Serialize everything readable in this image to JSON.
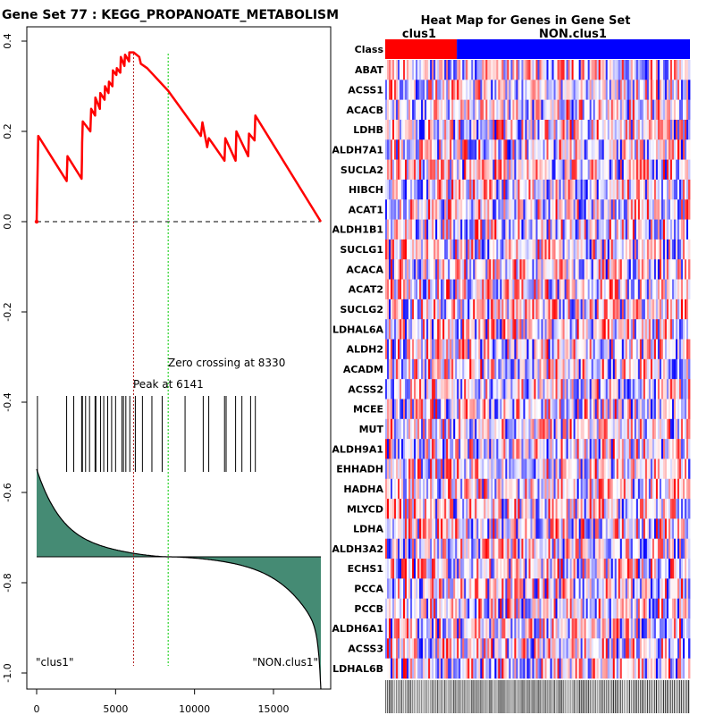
{
  "chart_data": [
    {
      "type": "line",
      "title": "Gene Set  77 : KEGG_PROPANOATE_METABOLISM",
      "xlabel": "",
      "ylabel": "",
      "xlim": [
        0,
        18000
      ],
      "ylim": [
        -1.0,
        0.4
      ],
      "x_ticks": [
        0,
        5000,
        10000,
        15000
      ],
      "x_tick_labels": [
        "0",
        "5000",
        "10000",
        "15000"
      ],
      "y_ticks": [
        0.4,
        0.2,
        0.0,
        -0.2,
        -0.4,
        -0.6,
        -0.8,
        -1.0
      ],
      "y_tick_labels": [
        "0.4",
        "0.2",
        "0.0",
        "-0.2",
        "-0.4",
        "-0.6",
        "-0.8",
        "-1.0"
      ],
      "series": [
        {
          "name": "running enrichment score",
          "color": "#ff0000",
          "points": [
            [
              0,
              0
            ],
            [
              100,
              0.19
            ],
            [
              1900,
              0.09
            ],
            [
              1950,
              0.145
            ],
            [
              2850,
              0.095
            ],
            [
              2870,
              0.14
            ],
            [
              2880,
              0.175
            ],
            [
              2900,
              0.195
            ],
            [
              2920,
              0.222
            ],
            [
              3400,
              0.2
            ],
            [
              3450,
              0.25
            ],
            [
              3700,
              0.235
            ],
            [
              3720,
              0.275
            ],
            [
              4000,
              0.25
            ],
            [
              4030,
              0.285
            ],
            [
              4300,
              0.27
            ],
            [
              4330,
              0.3
            ],
            [
              4550,
              0.285
            ],
            [
              4580,
              0.31
            ],
            [
              4800,
              0.3
            ],
            [
              4830,
              0.335
            ],
            [
              5050,
              0.325
            ],
            [
              5080,
              0.34
            ],
            [
              5300,
              0.33
            ],
            [
              5330,
              0.365
            ],
            [
              5560,
              0.345
            ],
            [
              5600,
              0.37
            ],
            [
              5850,
              0.355
            ],
            [
              5870,
              0.375
            ],
            [
              6141,
              0.375
            ],
            [
              6500,
              0.365
            ],
            [
              6600,
              0.35
            ],
            [
              7000,
              0.34
            ],
            [
              8330,
              0.29
            ],
            [
              10400,
              0.19
            ],
            [
              10500,
              0.22
            ],
            [
              10800,
              0.165
            ],
            [
              10900,
              0.185
            ],
            [
              11200,
              0.17
            ],
            [
              11900,
              0.135
            ],
            [
              11950,
              0.185
            ],
            [
              12600,
              0.135
            ],
            [
              12650,
              0.2
            ],
            [
              13400,
              0.145
            ],
            [
              13450,
              0.195
            ],
            [
              13800,
              0.18
            ],
            [
              13850,
              0.235
            ],
            [
              18000,
              0.0
            ]
          ]
        }
      ],
      "reference_lines": {
        "baseline_y": 0.0,
        "peak_x": 6141,
        "zero_crossing_x": 8330
      },
      "hit_positions": [
        50,
        1900,
        2350,
        2850,
        2900,
        3100,
        3350,
        3700,
        3750,
        4050,
        4250,
        4500,
        4750,
        5000,
        5400,
        5500,
        5650,
        5900,
        6250,
        6700,
        7300,
        7950,
        9400,
        10550,
        10900,
        11900,
        12000,
        12600,
        13000,
        13550,
        13850
      ],
      "ranked_metric": {
        "start": 0.38,
        "end": -0.48,
        "zero_x": 8330,
        "fill": "#458b74"
      },
      "annotations": {
        "peak": "Peak at 6141",
        "zero_crossing": "Zero crossing at 8330",
        "left_class": "\"clus1\"",
        "right_class": "\"NON.clus1\""
      }
    },
    {
      "type": "heatmap",
      "title": "Heat Map for Genes in Gene Set",
      "class_row_label": "Class",
      "classes": [
        {
          "name": "clus1",
          "color": "#ff0000",
          "fraction": 0.235
        },
        {
          "name": "NON.clus1",
          "color": "#0000ff",
          "fraction": 0.765
        }
      ],
      "genes": [
        "ABAT",
        "ACSS1",
        "ACACB",
        "LDHB",
        "ALDH7A1",
        "SUCLA2",
        "HIBCH",
        "ACAT1",
        "ALDH1B1",
        "SUCLG1",
        "ACACA",
        "ACAT2",
        "SUCLG2",
        "LDHAL6A",
        "ALDH2",
        "ACADM",
        "ACSS2",
        "MCEE",
        "MUT",
        "ALDH9A1",
        "EHHADH",
        "HADHA",
        "MLYCD",
        "LDHA",
        "ALDH3A2",
        "ECHS1",
        "PCCA",
        "PCCB",
        "ALDH6A1",
        "ACSS3",
        "LDHAL6B"
      ],
      "color_scale": {
        "low": "#0000ff",
        "mid": "#ffffff",
        "high": "#ff0000"
      },
      "n_samples": 170
    }
  ]
}
